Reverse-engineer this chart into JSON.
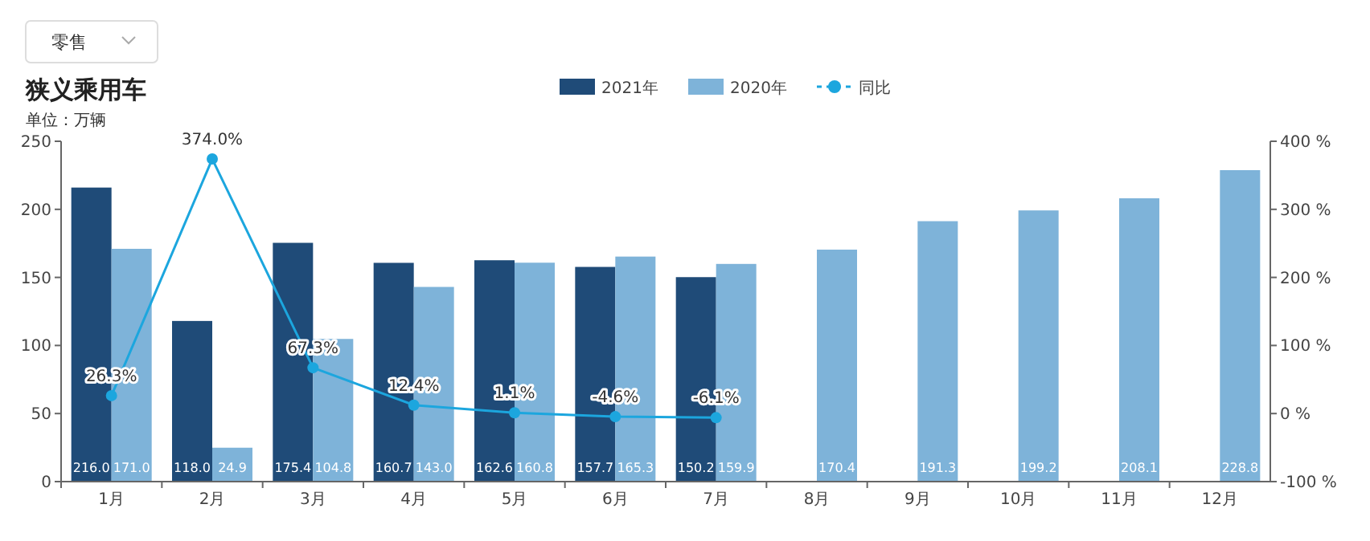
{
  "chart_data": {
    "type": "bar",
    "title": "狭义乘用车",
    "subtitle": "单位：万辆",
    "annotations": [
      "零售"
    ],
    "categories": [
      "1月",
      "2月",
      "3月",
      "4月",
      "5月",
      "6月",
      "7月",
      "8月",
      "9月",
      "10月",
      "11月",
      "12月"
    ],
    "series": [
      {
        "name": "2021年",
        "color": "#1f4b78",
        "value_labels": [
          "216.0",
          "118.0",
          "175.4",
          "160.7",
          "162.6",
          "157.7",
          "150.2",
          null,
          null,
          null,
          null,
          null
        ],
        "values": [
          216.0,
          118.0,
          175.4,
          160.7,
          162.6,
          157.7,
          150.2,
          null,
          null,
          null,
          null,
          null
        ]
      },
      {
        "name": "2020年",
        "color": "#7eb3d9",
        "value_labels": [
          "171.0",
          "24.9",
          "104.8",
          "143.0",
          "160.8",
          "165.3",
          "159.9",
          "170.4",
          "191.3",
          "199.2",
          "208.1",
          "228.8"
        ],
        "values": [
          171.0,
          24.9,
          104.8,
          143.0,
          160.8,
          165.3,
          159.9,
          170.4,
          191.3,
          199.2,
          208.1,
          228.8
        ]
      },
      {
        "name": "同比",
        "type": "line",
        "axis": "y2",
        "color": "#1ca6de",
        "value_labels": [
          "26.3%",
          "374.0%",
          "67.3%",
          "12.4%",
          "1.1%",
          "-4.6%",
          "-6.1%",
          null,
          null,
          null,
          null,
          null
        ],
        "values": [
          26.3,
          374.0,
          67.3,
          12.4,
          1.1,
          -4.6,
          -6.1,
          null,
          null,
          null,
          null,
          null
        ]
      }
    ],
    "ylim": [
      0,
      250
    ],
    "yticks": [
      0,
      50,
      100,
      150,
      200,
      250
    ],
    "y2lim": [
      -100,
      400
    ],
    "y2ticks": [
      {
        "value": -100,
        "label": "-100 %"
      },
      {
        "value": 0,
        "label": "0 %"
      },
      {
        "value": 100,
        "label": "100 %"
      },
      {
        "value": 200,
        "label": "200 %"
      },
      {
        "value": 300,
        "label": "300 %"
      },
      {
        "value": 400,
        "label": "400 %"
      }
    ],
    "data_labels": true,
    "marker": "circle",
    "legend": "top",
    "grid": false
  }
}
